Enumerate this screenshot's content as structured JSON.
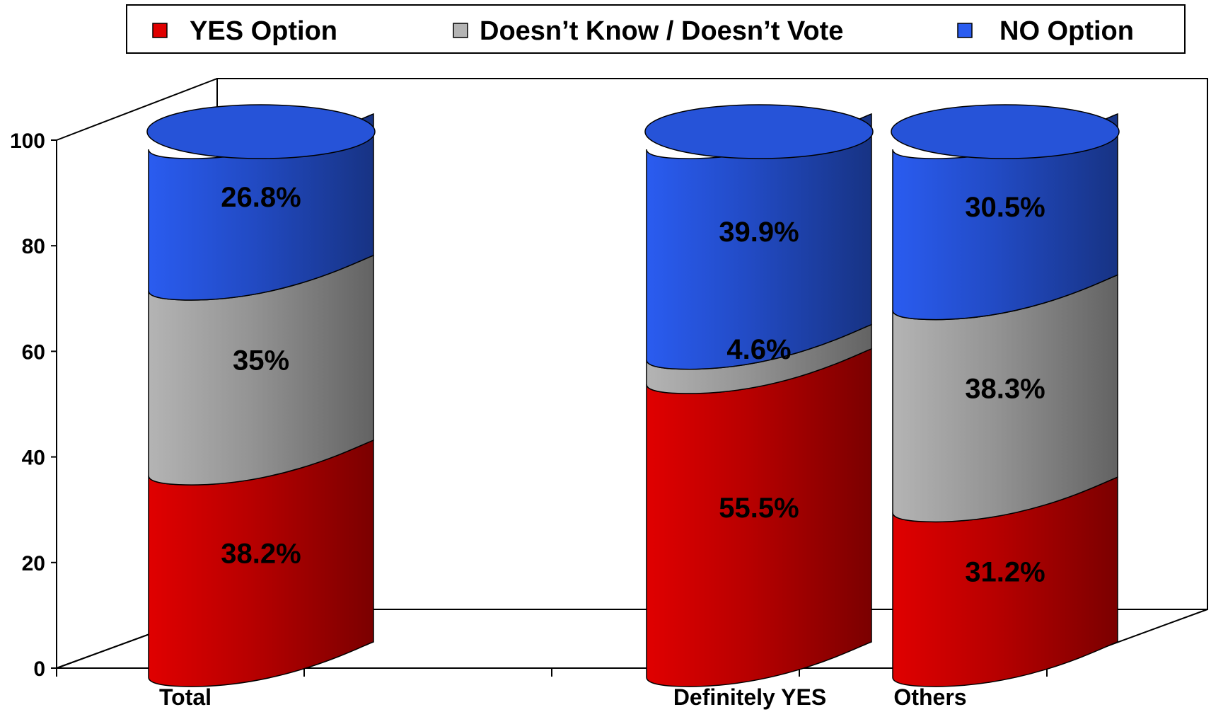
{
  "chart_data": {
    "type": "bar",
    "stacked": true,
    "orientation": "vertical",
    "style": "3d-cylinder",
    "categories": [
      "Total",
      "",
      "Definitely YES",
      "Others"
    ],
    "series": [
      {
        "name": "YES Option",
        "color": "#e00000",
        "values": [
          38.2,
          null,
          55.5,
          31.2
        ],
        "labels": [
          "38.2%",
          "",
          "55.5%",
          "31.2%"
        ]
      },
      {
        "name": "Doesn’t Know / Doesn’t Vote",
        "color": "#b4b4b4",
        "values": [
          35,
          null,
          4.6,
          38.3
        ],
        "labels": [
          "35%",
          "",
          "4.6%",
          "38.3%"
        ]
      },
      {
        "name": "NO Option",
        "color": "#2a5cf0",
        "values": [
          26.8,
          null,
          39.9,
          30.5
        ],
        "labels": [
          "26.8%",
          "",
          "39.9%",
          "30.5%"
        ]
      }
    ],
    "yticks": [
      "0",
      "20",
      "40",
      "60",
      "80",
      "100"
    ],
    "ylim": [
      0,
      100
    ],
    "legend_position": "top",
    "grid": false
  }
}
